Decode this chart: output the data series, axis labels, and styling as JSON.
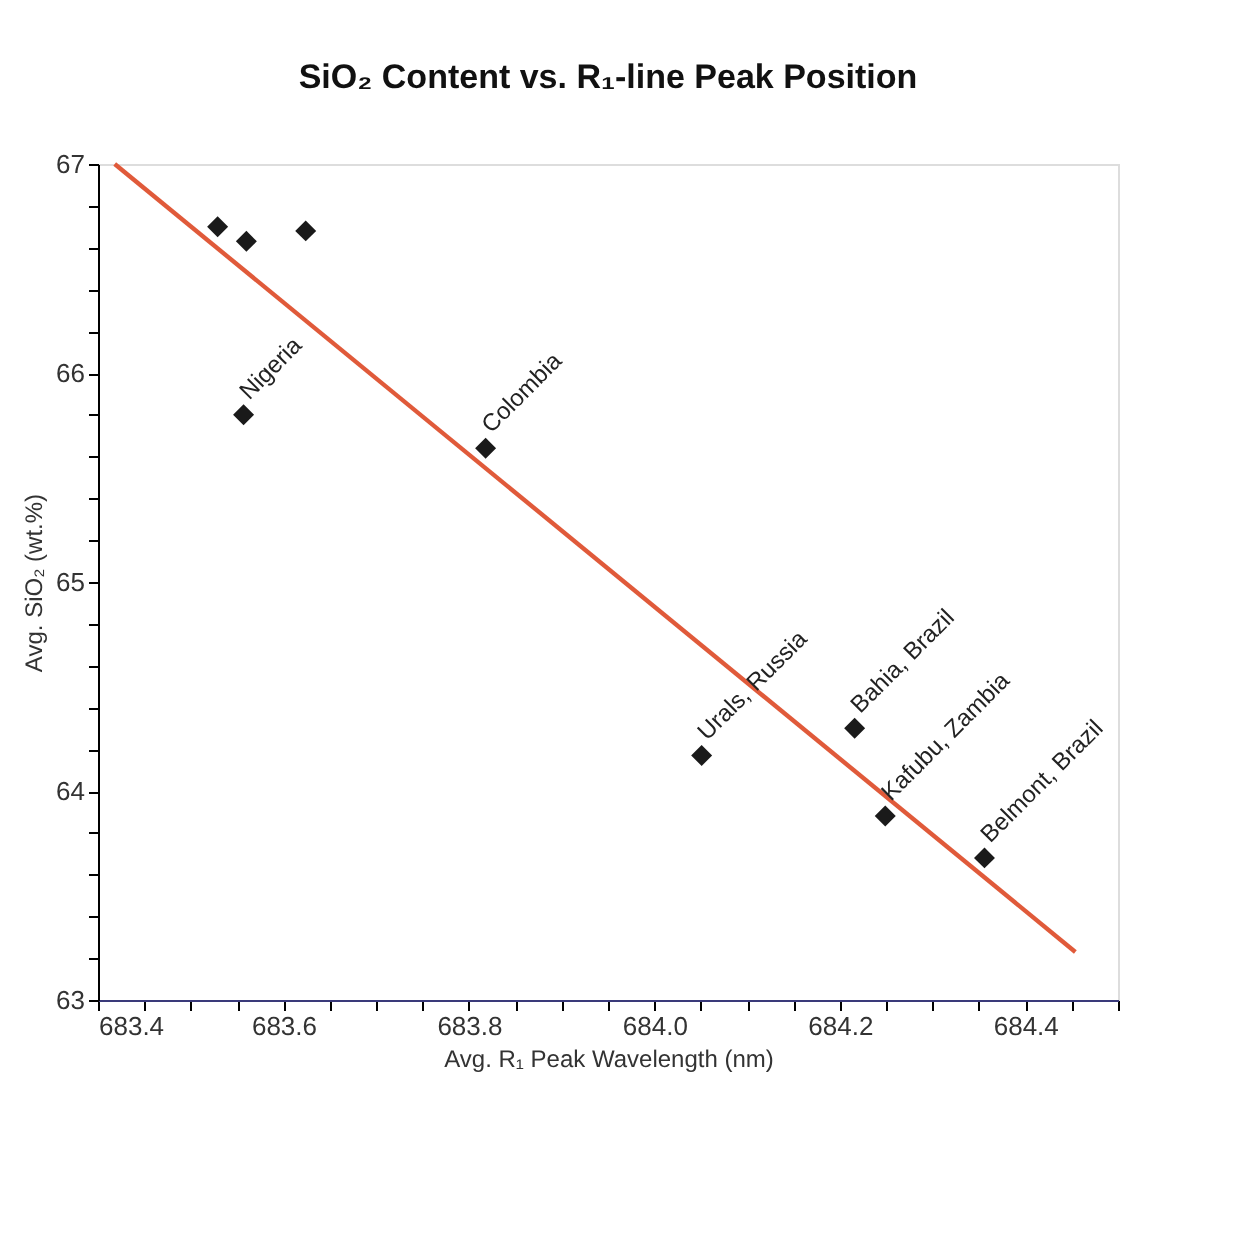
{
  "chart_data": {
    "type": "scatter",
    "title": "SiO₂ Content vs. R₁-line Peak Position",
    "xlabel": "Avg. R₁ Peak Wavelength (nm)",
    "ylabel": "Avg. SiO₂ (wt.%)",
    "x": [
      683.529,
      683.56,
      683.624,
      683.557,
      683.818,
      684.051,
      684.216,
      684.249,
      684.356
    ],
    "series": [
      {
        "type": "scatter",
        "color": "#1a1a1a",
        "marker": "diamond",
        "values": [
          66.7,
          66.63,
          66.68,
          65.8,
          65.64,
          64.17,
          64.3,
          63.88,
          63.68
        ]
      },
      {
        "type": "line",
        "color": "#e05a3a",
        "marker": "none",
        "line_style": "solid",
        "x": [
          683.418,
          684.454
        ],
        "values": [
          67.0,
          63.23
        ]
      }
    ],
    "annotations": [
      {
        "text": "Nigeria",
        "x": 683.557,
        "y": 65.8
      },
      {
        "text": "Colombia",
        "x": 683.818,
        "y": 65.64
      },
      {
        "text": "Urals, Russia",
        "x": 684.051,
        "y": 64.17
      },
      {
        "text": "Bahia, Brazil",
        "x": 684.216,
        "y": 64.3
      },
      {
        "text": "Kafubu, Zambia",
        "x": 684.249,
        "y": 63.88
      },
      {
        "text": "Belmont, Brazil",
        "x": 684.356,
        "y": 63.68
      }
    ],
    "xlim": [
      683.4,
      684.5
    ],
    "xticks": [
      683.4,
      {
        "value": 683.45,
        "label": null
      },
      683.6,
      {
        "value": 683.65,
        "label": null
      },
      {
        "value": 683.5,
        "label": null
      },
      {
        "value": 683.55,
        "label": null
      },
      {
        "value": 683.7,
        "label": null
      },
      {
        "value": 683.75,
        "label": null
      },
      683.8,
      {
        "value": 683.85,
        "label": null
      },
      {
        "value": 683.9,
        "label": null
      },
      {
        "value": 683.95,
        "label": null
      },
      {
        "value": 684.0,
        "label": "684.0"
      },
      {
        "value": 684.05,
        "label": null
      },
      {
        "value": 684.1,
        "label": null
      },
      {
        "value": 684.15,
        "label": null
      },
      684.2,
      {
        "value": 684.25,
        "label": null
      },
      {
        "value": 684.3,
        "label": null
      },
      {
        "value": 684.35,
        "label": null
      },
      684.4,
      {
        "value": 684.45,
        "label": null
      },
      {
        "value": 684.5,
        "label": null
      }
    ],
    "ylim": [
      63,
      67
    ],
    "yticks": [
      63,
      {
        "value": 63.2,
        "label": null
      },
      {
        "value": 63.4,
        "label": null
      },
      {
        "value": 63.6,
        "label": null
      },
      {
        "value": 63.8,
        "label": null
      },
      64,
      {
        "value": 64.2,
        "label": null
      },
      {
        "value": 64.4,
        "label": null
      },
      {
        "value": 64.6,
        "label": null
      },
      {
        "value": 64.8,
        "label": null
      },
      65,
      {
        "value": 65.2,
        "label": null
      },
      {
        "value": 65.4,
        "label": null
      },
      {
        "value": 65.6,
        "label": null
      },
      {
        "value": 65.8,
        "label": null
      },
      66,
      {
        "value": 66.2,
        "label": null
      },
      {
        "value": 66.4,
        "label": null
      },
      {
        "value": 66.6,
        "label": null
      },
      {
        "value": 66.8,
        "label": null
      },
      67
    ],
    "grid": false
  }
}
